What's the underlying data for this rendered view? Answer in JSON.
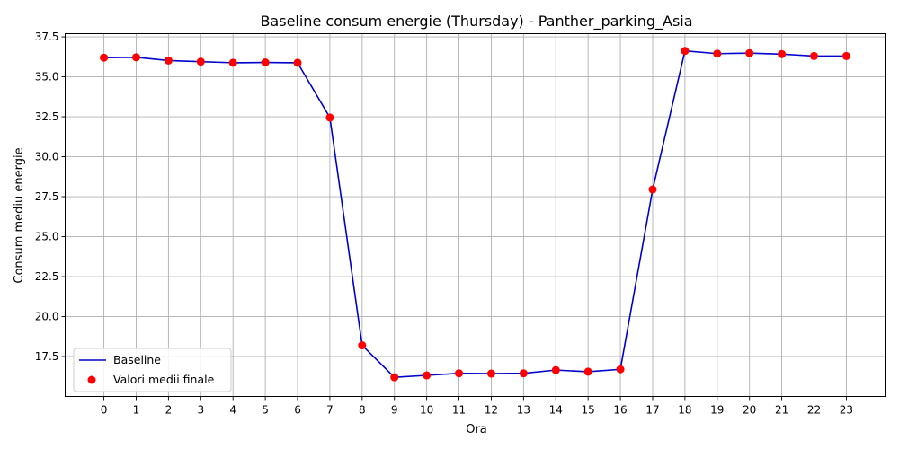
{
  "chart_data": {
    "type": "line",
    "title": "Baseline consum energie (Thursday) - Panther_parking_Asia",
    "xlabel": "Ora",
    "ylabel": "Consum mediu energie",
    "x": [
      0,
      1,
      2,
      3,
      4,
      5,
      6,
      7,
      8,
      9,
      10,
      11,
      12,
      13,
      14,
      15,
      16,
      17,
      18,
      19,
      20,
      21,
      22,
      23
    ],
    "x_tick_labels": [
      "0",
      "1",
      "2",
      "3",
      "4",
      "5",
      "6",
      "7",
      "8",
      "9",
      "10",
      "11",
      "12",
      "13",
      "14",
      "15",
      "16",
      "17",
      "18",
      "19",
      "20",
      "21",
      "22",
      "23"
    ],
    "y_ticks": [
      17.5,
      20.0,
      22.5,
      25.0,
      27.5,
      30.0,
      32.5,
      35.0,
      37.5
    ],
    "y_tick_labels": [
      "17.5",
      "20.0",
      "22.5",
      "25.0",
      "27.5",
      "30.0",
      "32.5",
      "35.0",
      "37.5"
    ],
    "xlim": [
      -1.2,
      24.2
    ],
    "ylim": [
      15.0,
      37.7
    ],
    "grid": true,
    "legend_position": "lower-left",
    "series": [
      {
        "name": "Baseline",
        "kind": "line",
        "color": "#0000cc",
        "values": [
          36.2,
          36.22,
          36.02,
          35.95,
          35.88,
          35.9,
          35.88,
          32.45,
          18.2,
          16.2,
          16.32,
          16.45,
          16.43,
          16.45,
          16.65,
          16.55,
          16.7,
          27.95,
          36.62,
          36.45,
          36.48,
          36.42,
          36.3,
          36.3
        ]
      },
      {
        "name": "Valori medii finale",
        "kind": "scatter",
        "color": "#ff0000",
        "values": [
          36.2,
          36.22,
          36.02,
          35.95,
          35.88,
          35.9,
          35.88,
          32.45,
          18.2,
          16.2,
          16.32,
          16.45,
          16.43,
          16.45,
          16.65,
          16.55,
          16.7,
          27.95,
          36.62,
          36.45,
          36.48,
          36.42,
          36.3,
          36.3
        ]
      }
    ]
  }
}
